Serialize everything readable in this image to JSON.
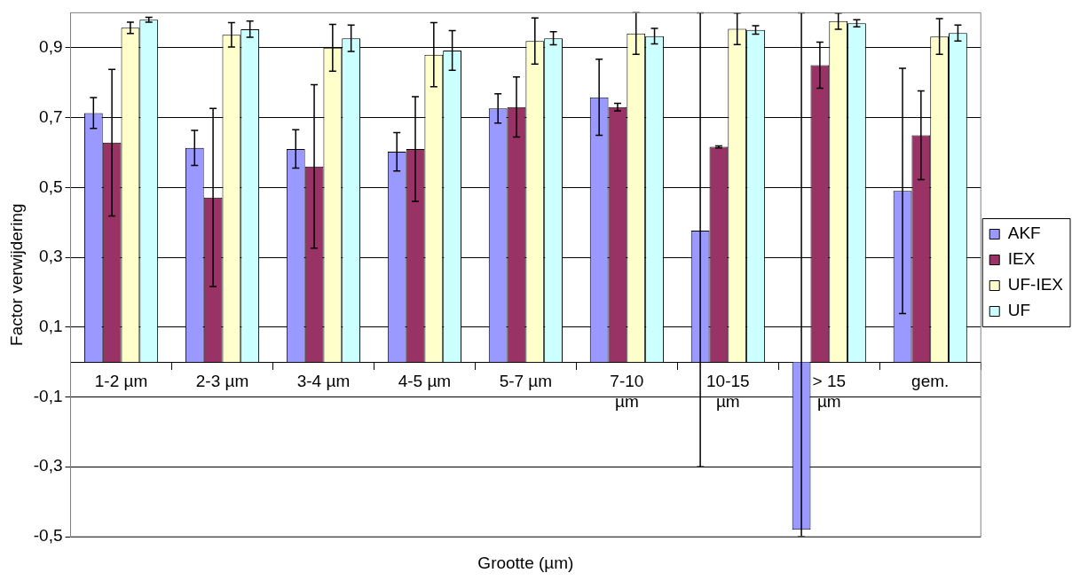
{
  "chart_data": {
    "type": "bar",
    "xlabel": "Grootte (µm)",
    "ylabel": "Factor verwijdering",
    "categories": [
      "1-2 µm",
      "2-3 µm",
      "3-4 µm",
      "4-5 µm",
      "5-7 µm",
      "7-10 µm",
      "10-15 µm",
      "> 15 µm",
      "gem."
    ],
    "series": [
      {
        "name": "AKF",
        "color": "#9999ff",
        "values": [
          0.713,
          0.613,
          0.61,
          0.602,
          0.726,
          0.758,
          0.376,
          -0.48,
          0.49
        ],
        "errors": [
          0.044,
          0.05,
          0.055,
          0.055,
          0.042,
          0.109,
          [
            -0.3,
            1.0
          ],
          [
            -0.5,
            1.0
          ],
          0.351
        ]
      },
      {
        "name": "IEX",
        "color": "#993366",
        "values": [
          0.628,
          0.471,
          0.56,
          0.61,
          0.73,
          0.73,
          0.616,
          0.85,
          0.649
        ],
        "errors": [
          0.21,
          0.255,
          0.234,
          0.15,
          0.086,
          0.011,
          0.003,
          0.066,
          0.127
        ]
      },
      {
        "name": "UF-IEX",
        "color": "#ffffcc",
        "values": [
          0.957,
          0.937,
          0.9,
          0.88,
          0.919,
          0.941,
          0.954,
          0.976,
          0.932
        ],
        "errors": [
          0.016,
          0.035,
          0.067,
          0.092,
          0.066,
          0.06,
          0.045,
          0.023,
          0.051
        ]
      },
      {
        "name": "UF",
        "color": "#ccffff",
        "values": [
          0.98,
          0.953,
          0.927,
          0.892,
          0.927,
          0.933,
          0.951,
          0.97,
          0.942
        ],
        "errors": [
          0.007,
          0.023,
          0.038,
          0.057,
          0.019,
          0.022,
          0.012,
          0.01,
          0.023
        ]
      }
    ],
    "ylim": [
      -0.5,
      1.0
    ],
    "yticks": [
      {
        "value": -0.5,
        "label": "-0,5"
      },
      {
        "value": -0.3,
        "label": "-0,3"
      },
      {
        "value": -0.1,
        "label": "-0,1"
      },
      {
        "value": 0.1,
        "label": "0,1"
      },
      {
        "value": 0.3,
        "label": "0,3"
      },
      {
        "value": 0.5,
        "label": "0,5"
      },
      {
        "value": 0.7,
        "label": "0,7"
      },
      {
        "value": 0.9,
        "label": "0,9"
      }
    ],
    "grid": "y",
    "legend": "right"
  }
}
